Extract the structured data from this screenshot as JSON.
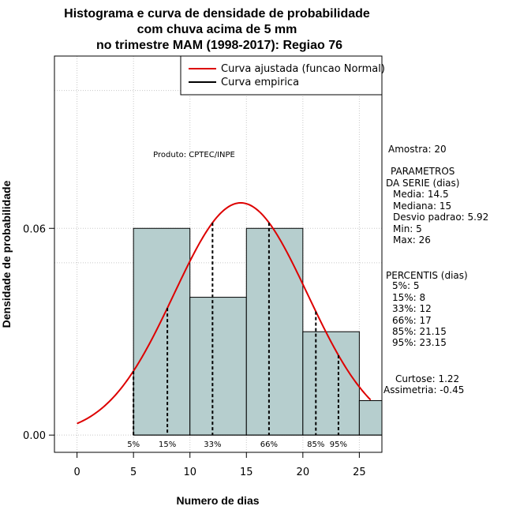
{
  "chart_data": {
    "type": "bar",
    "title_lines": [
      "Histograma e curva de densidade de probabilidade",
      "com chuva acima de 5 mm",
      "no trimestre MAM (1998-2017): Regiao 76"
    ],
    "xlabel": "Numero de dias",
    "ylabel": "Densidade de probabilidade",
    "xlim": [
      -2,
      27
    ],
    "ylim": [
      -0.005,
      0.11
    ],
    "x_ticks": [
      0,
      5,
      10,
      15,
      20,
      25
    ],
    "y_ticks": [
      0.0,
      0.06
    ],
    "y_tick_labels": [
      "0.00",
      "0.06"
    ],
    "bins": [
      {
        "x0": 5,
        "x1": 10,
        "density": 0.06
      },
      {
        "x0": 10,
        "x1": 15,
        "density": 0.04
      },
      {
        "x0": 15,
        "x1": 20,
        "density": 0.06
      },
      {
        "x0": 20,
        "x1": 25,
        "density": 0.03
      },
      {
        "x0": 25,
        "x1": 27,
        "density": 0.01
      }
    ],
    "bar_color": "#b6cece",
    "curve_color": "#dd0000",
    "normal_fit": {
      "mean": 14.5,
      "sd": 5.92,
      "x_from": 0,
      "x_to": 26
    },
    "percentiles": [
      {
        "label": "5%",
        "x": 5
      },
      {
        "label": "15%",
        "x": 8
      },
      {
        "label": "33%",
        "x": 12
      },
      {
        "label": "66%",
        "x": 17
      },
      {
        "label": "85%",
        "x": 21.15
      },
      {
        "label": "95%",
        "x": 23.15
      }
    ],
    "grid": true,
    "legend_position": "top-right",
    "legend": [
      {
        "label": "Curva ajustada (funcao Normal)",
        "color": "#dd0000"
      },
      {
        "label": "Curva empirica",
        "color": "#000000"
      }
    ],
    "annotation": "Produto: CPTEC/INPE"
  },
  "side_panel": {
    "sample": "Amostra: 20",
    "params_title": "PARAMETROS",
    "params_subtitle": "DA SERIE (dias)",
    "params": [
      "Media: 14.5",
      "Mediana: 15",
      "Desvio padrao: 5.92",
      "Min: 5",
      "Max: 26"
    ],
    "percentis_title": "PERCENTIS (dias)",
    "percentis": [
      "5%: 5",
      "15%: 8",
      "33%: 12",
      "66%: 17",
      "85%: 21.15",
      "95%: 23.15"
    ],
    "curtose": "Curtose: 1.22",
    "assimetria": "Assimetria: -0.45"
  }
}
